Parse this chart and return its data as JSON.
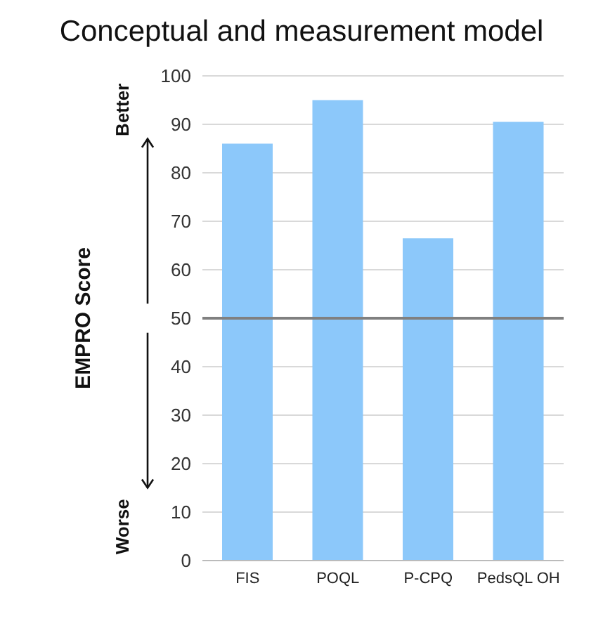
{
  "chart_data": {
    "type": "bar",
    "title": "Conceptual and measurement model",
    "ylabel": "EMPRO Score",
    "categories": [
      "FIS",
      "POQL",
      "P-CPQ",
      "PedsQL OH"
    ],
    "values": [
      86,
      95,
      66.5,
      90.5
    ],
    "color": "#8cc8fa",
    "ylim": [
      0,
      100
    ],
    "yticks": [
      0,
      10,
      20,
      30,
      40,
      50,
      60,
      70,
      80,
      90,
      100
    ],
    "grid": "y",
    "ref_lines": [
      {
        "axis": "y",
        "value": 50,
        "color": "#808080"
      }
    ],
    "annotations": [
      "Better",
      "Worse"
    ]
  }
}
